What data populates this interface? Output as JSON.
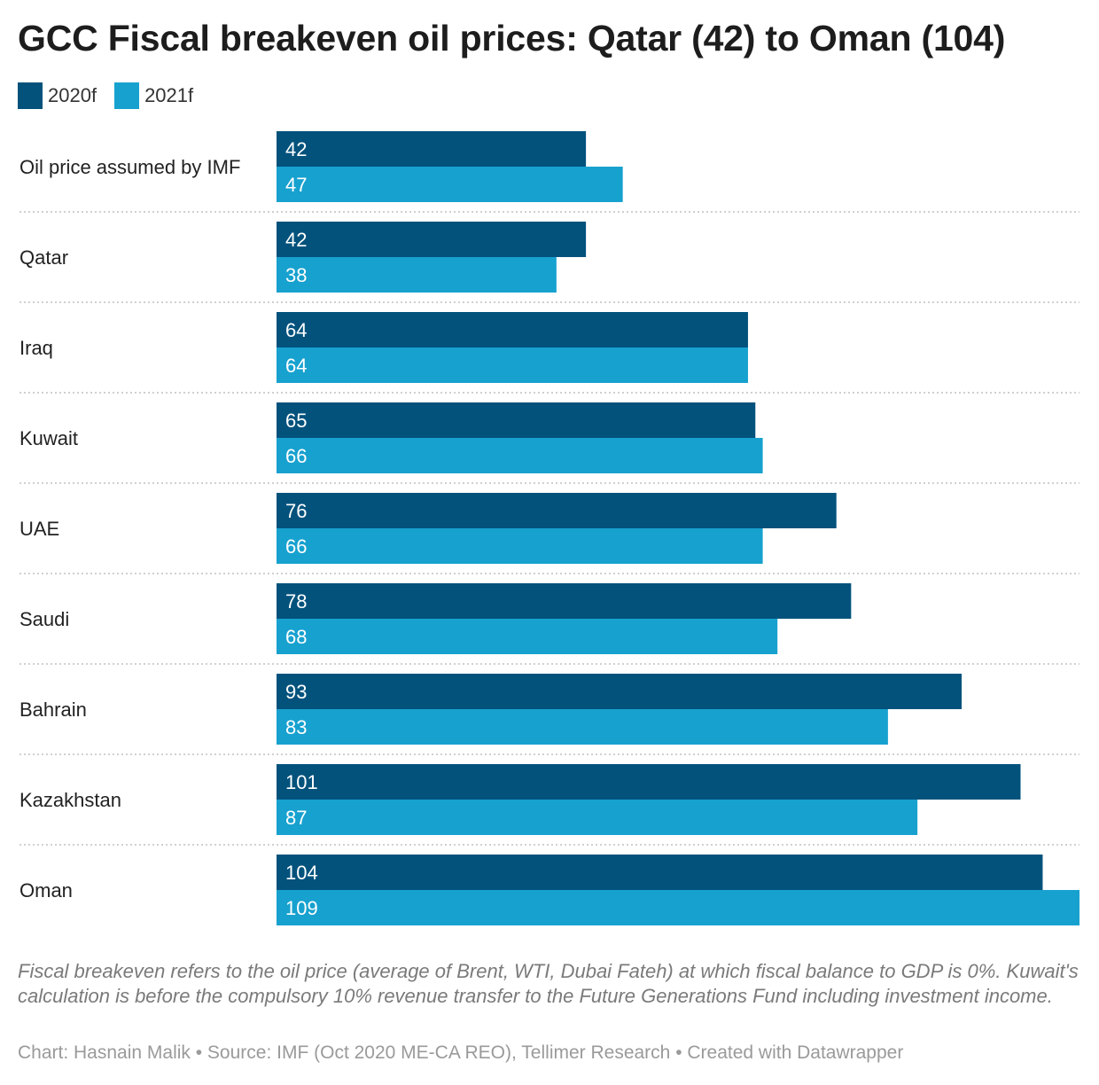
{
  "title": "GCC Fiscal breakeven oil prices: Qatar (42) to Oman (104)",
  "notes": "Fiscal breakeven refers to the oil price (average of Brent, WTI, Dubai Fateh) at which fiscal balance to GDP is 0%. Kuwait's calculation is before the compulsory 10% revenue transfer to the Future Generations Fund including investment income.",
  "footer": "Chart: Hasnain Malik • Source: IMF (Oct 2020 ME-CA REO), Tellimer Research • Created with Datawrapper",
  "colors": {
    "series_2020": "#02527c",
    "series_2021": "#17a1cf",
    "separator": "#d0d0d0"
  },
  "chart_data": {
    "type": "bar",
    "orientation": "horizontal",
    "categories": [
      "Oil price assumed by IMF",
      "Qatar",
      "Iraq",
      "Kuwait",
      "UAE",
      "Saudi",
      "Bahrain",
      "Kazakhstan",
      "Oman"
    ],
    "series": [
      {
        "name": "2020f",
        "color": "#02527c",
        "values": [
          42,
          42,
          64,
          65,
          76,
          78,
          93,
          101,
          104
        ]
      },
      {
        "name": "2021f",
        "color": "#17a1cf",
        "values": [
          47,
          38,
          64,
          66,
          66,
          68,
          83,
          87,
          109
        ]
      }
    ],
    "xlim": [
      0,
      109
    ],
    "grid": false,
    "legend": "top-left",
    "value_labels": "inside-start"
  }
}
